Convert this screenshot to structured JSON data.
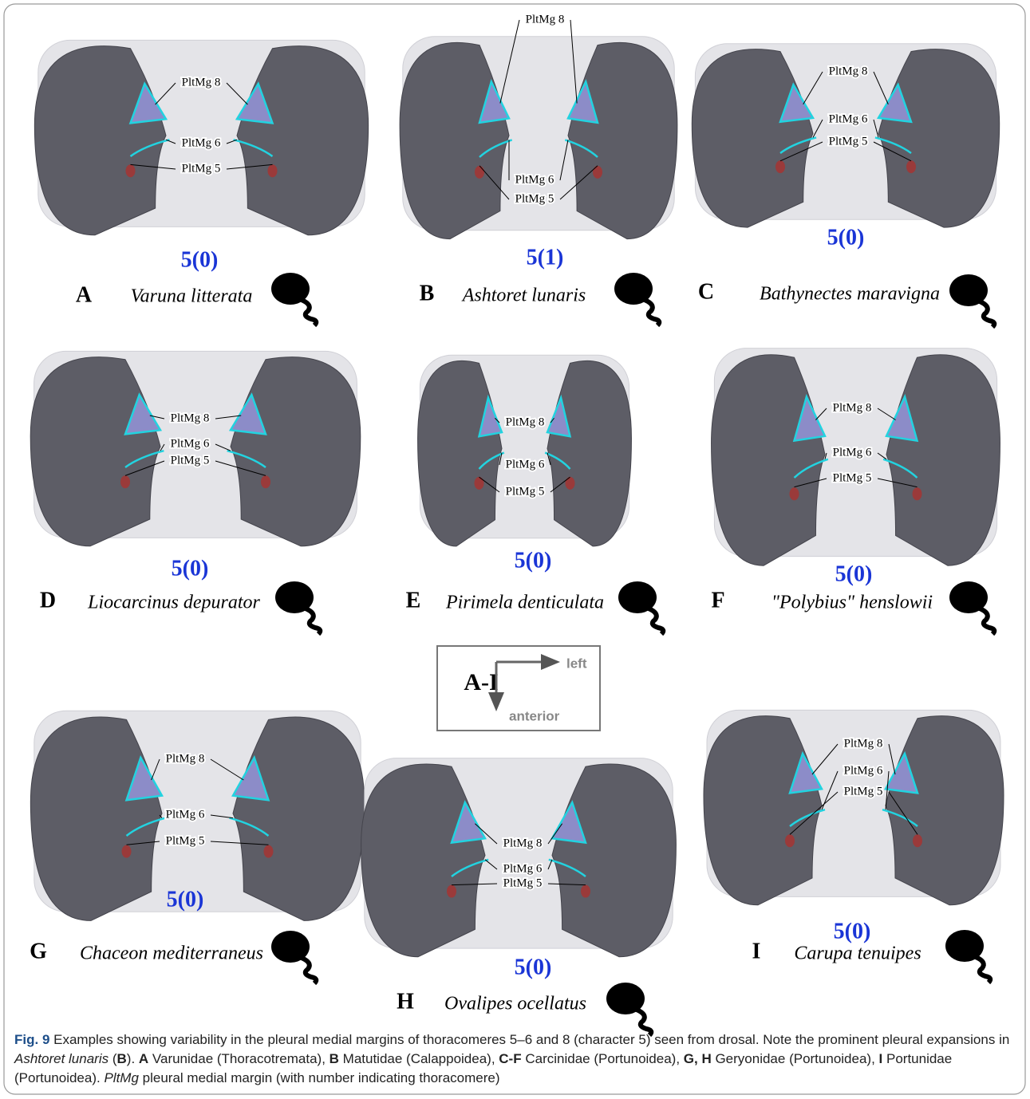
{
  "panels": [
    {
      "letter": "A",
      "species": "Varuna litterata",
      "state": "5(0)",
      "labels": [
        "PltMg 8",
        "PltMg 6",
        "PltMg 5"
      ]
    },
    {
      "letter": "B",
      "species": "Ashtoret lunaris",
      "state": "5(1)",
      "labels": [
        "PltMg 8",
        "PltMg 6",
        "PltMg 5"
      ]
    },
    {
      "letter": "C",
      "species": "Bathynectes maravigna",
      "state": "5(0)",
      "labels": [
        "PltMg 8",
        "PltMg 6",
        "PltMg 5"
      ]
    },
    {
      "letter": "D",
      "species": "Liocarcinus depurator",
      "state": "5(0)",
      "labels": [
        "PltMg 8",
        "PltMg 6",
        "PltMg 5"
      ]
    },
    {
      "letter": "E",
      "species": "Pirimela denticulata",
      "state": "5(0)",
      "labels": [
        "PltMg 8",
        "PltMg 6",
        "PltMg 5"
      ]
    },
    {
      "letter": "F",
      "species": "\"Polybius\" henslowii",
      "state": "5(0)",
      "labels": [
        "PltMg 8",
        "PltMg 6",
        "PltMg 5"
      ]
    },
    {
      "letter": "G",
      "species": "Chaceon mediterraneus",
      "state": "5(0)",
      "labels": [
        "PltMg 8",
        "PltMg 6",
        "PltMg 5"
      ]
    },
    {
      "letter": "H",
      "species": "Ovalipes ocellatus",
      "state": "5(0)",
      "labels": [
        "PltMg 8",
        "PltMg 6",
        "PltMg 5"
      ]
    },
    {
      "letter": "I",
      "species": "Carupa tenuipes",
      "state": "5(0)",
      "labels": [
        "PltMg 8",
        "PltMg 6",
        "PltMg 5"
      ]
    }
  ],
  "orientation": {
    "title": "A-I",
    "x_label": "left",
    "y_label": "anterior"
  },
  "caption": {
    "label": "Fig. 9",
    "segments": [
      "  Examples showing variability in the pleural medial margins of thoracomeres 5–6 and 8 (character 5) seen from drosal. Note the prominent pleural expansions in ",
      "Ashtoret lunaris",
      " (",
      "B",
      "). ",
      "A",
      " Varunidae (Thoracotremata), ",
      "B",
      " Matutidae (Calappoidea), ",
      "C-F",
      " Carcinidae (Portunoidea), ",
      "G, H",
      " Geryonidae (Portunoidea), ",
      "I",
      " Portunidae (Portunoidea). ",
      "PltMg",
      " pleural medial margin (with number indicating thoracomere)"
    ]
  }
}
